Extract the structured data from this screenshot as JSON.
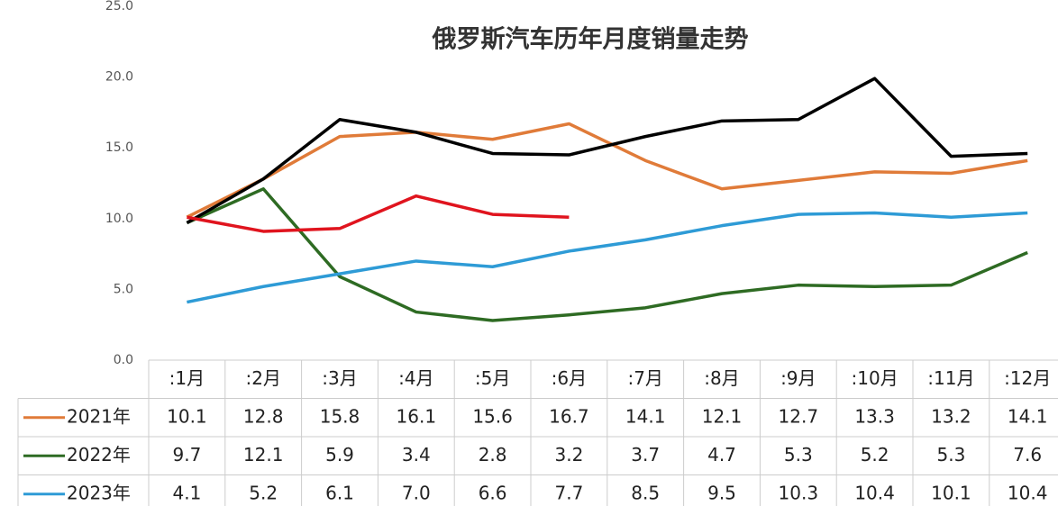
{
  "chart_data": {
    "type": "line",
    "title": "俄罗斯汽车历年月度销量走势",
    "categories": [
      ":1月",
      ":2月",
      ":3月",
      ":4月",
      ":5月",
      ":6月",
      ":7月",
      ":8月",
      ":9月",
      ":10月",
      ":11月",
      ":12月"
    ],
    "series": [
      {
        "name": "2021年",
        "color": "#e07b39",
        "values": [
          10.1,
          12.8,
          15.8,
          16.1,
          15.6,
          16.7,
          14.1,
          12.1,
          12.7,
          13.3,
          13.2,
          14.1
        ],
        "value_labels": [
          "10.1",
          "12.8",
          "15.8",
          "16.1",
          "15.6",
          "16.7",
          "14.1",
          "12.1",
          "12.7",
          "13.3",
          "13.2",
          "14.1"
        ]
      },
      {
        "name": "2022年",
        "color": "#2e6b23",
        "values": [
          9.7,
          12.1,
          5.9,
          3.4,
          2.8,
          3.2,
          3.7,
          4.7,
          5.3,
          5.2,
          5.3,
          7.6
        ],
        "value_labels": [
          "9.7",
          "12.1",
          "5.9",
          "3.4",
          "2.8",
          "3.2",
          "3.7",
          "4.7",
          "5.3",
          "5.2",
          "5.3",
          "7.6"
        ]
      },
      {
        "name": "2023年",
        "color": "#2e9bd6",
        "values": [
          4.1,
          5.2,
          6.1,
          7.0,
          6.6,
          7.7,
          8.5,
          9.5,
          10.3,
          10.4,
          10.1,
          10.4
        ],
        "value_labels": [
          "4.1",
          "5.2",
          "6.1",
          "7.0",
          "6.6",
          "7.7",
          "8.5",
          "9.5",
          "10.3",
          "10.4",
          "10.1",
          "10.4"
        ]
      },
      {
        "color": "#000000",
        "values": [
          9.7,
          12.8,
          17.0,
          16.1,
          14.6,
          14.5,
          15.8,
          16.9,
          17.0,
          19.9,
          14.4,
          14.6
        ]
      },
      {
        "color": "#e0141e",
        "values": [
          10.1,
          9.1,
          9.3,
          11.6,
          10.3,
          10.1,
          null,
          null,
          null,
          null,
          null,
          null
        ]
      }
    ],
    "ylim": [
      0,
      25
    ],
    "yticks": [
      {
        "value": 0,
        "label": "0.0"
      },
      {
        "value": 5,
        "label": "5.0"
      },
      {
        "value": 10,
        "label": "10.0"
      },
      {
        "value": 15,
        "label": "15.0"
      },
      {
        "value": 20,
        "label": "20.0"
      },
      {
        "value": 25,
        "label": "25.0"
      }
    ],
    "grid": false
  }
}
